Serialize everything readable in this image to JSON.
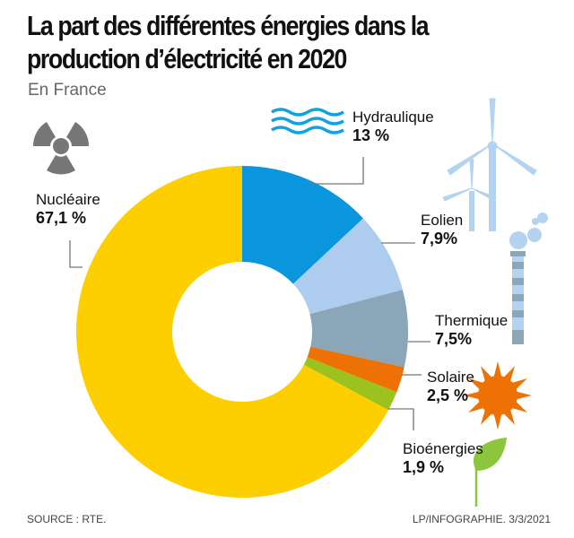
{
  "chart_data": {
    "type": "pie",
    "style": "donut",
    "title": "La part des différentes énergies dans la production d’électricité en 2020",
    "subtitle": "En France",
    "categories": [
      "Hydraulique",
      "Eolien",
      "Thermique",
      "Solaire",
      "Bioénergies",
      "Nucléaire"
    ],
    "values": [
      13,
      7.9,
      7.5,
      2.5,
      1.9,
      67.1
    ],
    "value_labels": [
      "13 %",
      "7,9%",
      "7,5%",
      "2,5 %",
      "1,9 %",
      "67,1 %"
    ],
    "colors": [
      "#0a96dc",
      "#aecdee",
      "#8aa6b8",
      "#ee7203",
      "#9cc31d",
      "#fecf00"
    ],
    "icons": [
      "waves-icon",
      "wind-turbine-icon",
      "chimney-icon",
      "sun-icon",
      "leaf-icon",
      "radiation-icon"
    ],
    "source": "SOURCE : RTE.",
    "credit": "LP/INFOGRAPHIE. 3/3/2021"
  }
}
